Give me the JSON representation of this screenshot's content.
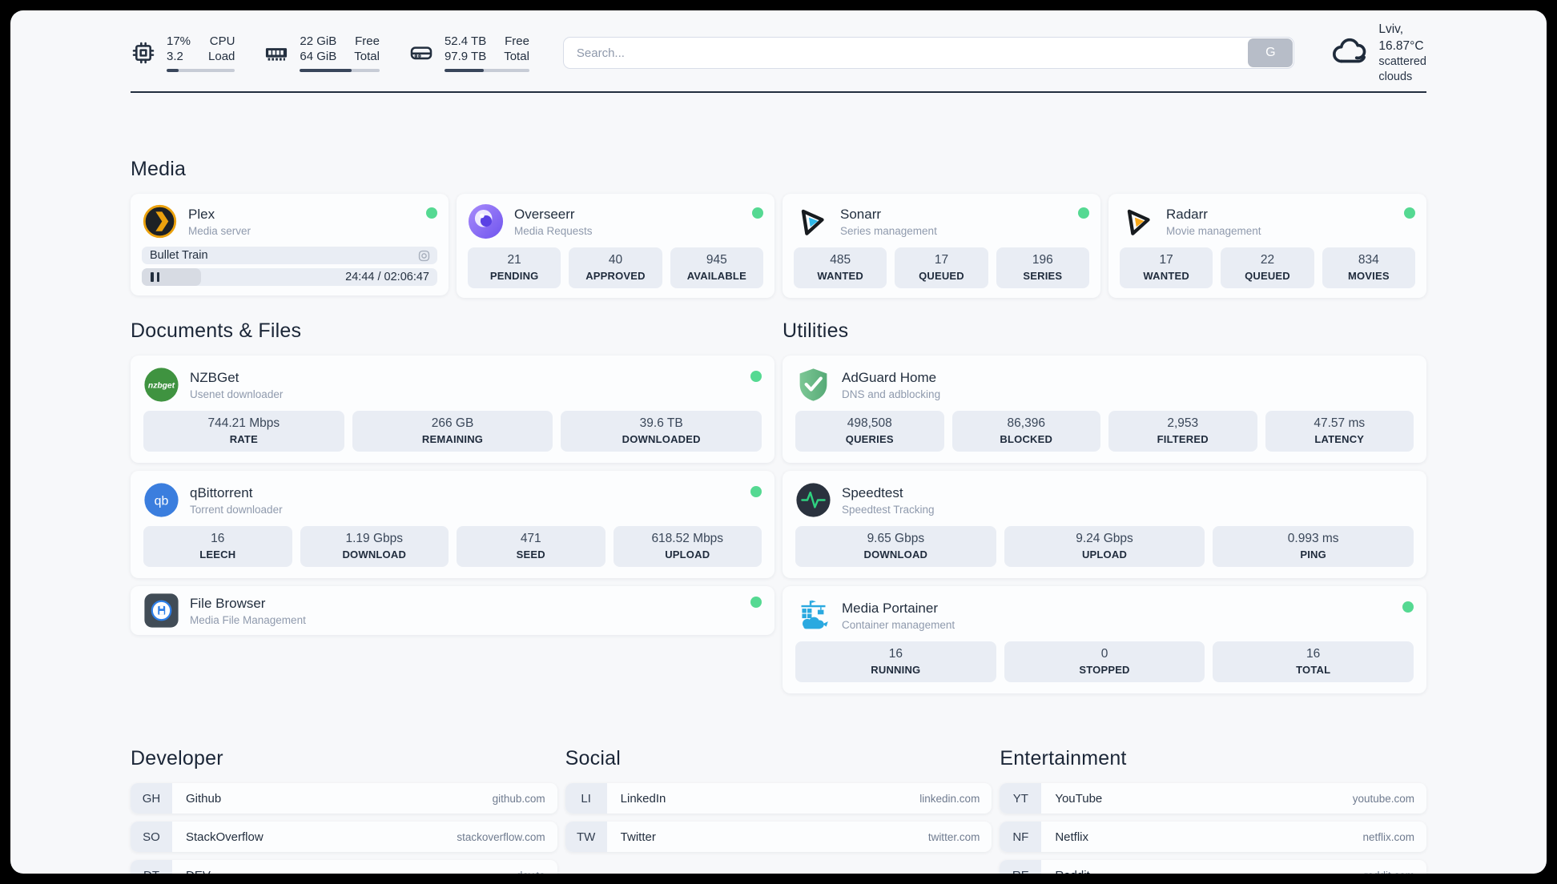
{
  "header": {
    "stats": [
      {
        "id": "cpu",
        "icon": "cpu-icon",
        "values": [
          "17%",
          "3.2"
        ],
        "labels": [
          "CPU",
          "Load"
        ],
        "progress_pct": 17
      },
      {
        "id": "memory",
        "icon": "ram-icon",
        "values": [
          "22 GiB",
          "64 GiB"
        ],
        "labels": [
          "Free",
          "Total"
        ],
        "progress_pct": 65
      },
      {
        "id": "disk",
        "icon": "disk-icon",
        "values": [
          "52.4 TB",
          "97.9 TB"
        ],
        "labels": [
          "Free",
          "Total"
        ],
        "progress_pct": 46
      }
    ],
    "search": {
      "placeholder": "Search...",
      "button_label": "G"
    },
    "weather": {
      "icon": "cloud-icon",
      "line1": "Lviv, 16.87°C",
      "line2": "scattered clouds"
    }
  },
  "sections": {
    "media": {
      "title": "Media",
      "cards": [
        {
          "id": "plex",
          "name": "Plex",
          "subtitle": "Media server",
          "icon": "plex-icon",
          "online": true,
          "now_playing": {
            "title": "Bullet Train",
            "time": "24:44 / 02:06:47",
            "progress_pct": 20
          }
        },
        {
          "id": "overseerr",
          "name": "Overseerr",
          "subtitle": "Media Requests",
          "icon": "overseerr-icon",
          "online": true,
          "stats": [
            {
              "value": "21",
              "label": "PENDING"
            },
            {
              "value": "40",
              "label": "APPROVED"
            },
            {
              "value": "945",
              "label": "AVAILABLE"
            }
          ]
        },
        {
          "id": "sonarr",
          "name": "Sonarr",
          "subtitle": "Series management",
          "icon": "sonarr-icon",
          "online": true,
          "stats": [
            {
              "value": "485",
              "label": "WANTED"
            },
            {
              "value": "17",
              "label": "QUEUED"
            },
            {
              "value": "196",
              "label": "SERIES"
            }
          ]
        },
        {
          "id": "radarr",
          "name": "Radarr",
          "subtitle": "Movie management",
          "icon": "radarr-icon",
          "online": true,
          "stats": [
            {
              "value": "17",
              "label": "WANTED"
            },
            {
              "value": "22",
              "label": "QUEUED"
            },
            {
              "value": "834",
              "label": "MOVIES"
            }
          ]
        }
      ]
    },
    "documents": {
      "title": "Documents & Files",
      "cards": [
        {
          "id": "nzbget",
          "name": "NZBGet",
          "subtitle": "Usenet downloader",
          "icon": "nzbget-icon",
          "online": true,
          "stats": [
            {
              "value": "744.21 Mbps",
              "label": "RATE"
            },
            {
              "value": "266 GB",
              "label": "REMAINING"
            },
            {
              "value": "39.6 TB",
              "label": "DOWNLOADED"
            }
          ]
        },
        {
          "id": "qbittorrent",
          "name": "qBittorrent",
          "subtitle": "Torrent downloader",
          "icon": "qbittorrent-icon",
          "online": true,
          "stats": [
            {
              "value": "16",
              "label": "LEECH"
            },
            {
              "value": "1.19 Gbps",
              "label": "DOWNLOAD"
            },
            {
              "value": "471",
              "label": "SEED"
            },
            {
              "value": "618.52 Mbps",
              "label": "UPLOAD"
            }
          ]
        },
        {
          "id": "filebrowser",
          "name": "File Browser",
          "subtitle": "Media File Management",
          "icon": "filebrowser-icon",
          "online": true,
          "stats": []
        }
      ]
    },
    "utilities": {
      "title": "Utilities",
      "cards": [
        {
          "id": "adguard",
          "name": "AdGuard Home",
          "subtitle": "DNS and adblocking",
          "icon": "adguard-icon",
          "online": false,
          "stats": [
            {
              "value": "498,508",
              "label": "QUERIES"
            },
            {
              "value": "86,396",
              "label": "BLOCKED"
            },
            {
              "value": "2,953",
              "label": "FILTERED"
            },
            {
              "value": "47.57 ms",
              "label": "LATENCY"
            }
          ]
        },
        {
          "id": "speedtest",
          "name": "Speedtest",
          "subtitle": "Speedtest Tracking",
          "icon": "speedtest-icon",
          "online": false,
          "stats": [
            {
              "value": "9.65 Gbps",
              "label": "DOWNLOAD"
            },
            {
              "value": "9.24 Gbps",
              "label": "UPLOAD"
            },
            {
              "value": "0.993 ms",
              "label": "PING"
            }
          ]
        },
        {
          "id": "portainer",
          "name": "Media Portainer",
          "subtitle": "Container management",
          "icon": "portainer-icon",
          "online": true,
          "stats": [
            {
              "value": "16",
              "label": "RUNNING"
            },
            {
              "value": "0",
              "label": "STOPPED"
            },
            {
              "value": "16",
              "label": "TOTAL"
            }
          ]
        }
      ]
    },
    "bookmarks": [
      {
        "title": "Developer",
        "items": [
          {
            "abbr": "GH",
            "name": "Github",
            "url": "github.com"
          },
          {
            "abbr": "SO",
            "name": "StackOverflow",
            "url": "stackoverflow.com"
          },
          {
            "abbr": "DT",
            "name": "DEV",
            "url": "dev.to"
          }
        ]
      },
      {
        "title": "Social",
        "items": [
          {
            "abbr": "LI",
            "name": "LinkedIn",
            "url": "linkedin.com"
          },
          {
            "abbr": "TW",
            "name": "Twitter",
            "url": "twitter.com"
          }
        ]
      },
      {
        "title": "Entertainment",
        "items": [
          {
            "abbr": "YT",
            "name": "YouTube",
            "url": "youtube.com"
          },
          {
            "abbr": "NF",
            "name": "Netflix",
            "url": "netflix.com"
          },
          {
            "abbr": "RE",
            "name": "Reddit",
            "url": "reddit.com"
          }
        ]
      }
    ]
  },
  "colors": {
    "status_online": "#55d992",
    "accent_dark": "#232f3f",
    "stat_box_bg": "#e9edf4",
    "panel_bg": "#f7f8fa"
  }
}
